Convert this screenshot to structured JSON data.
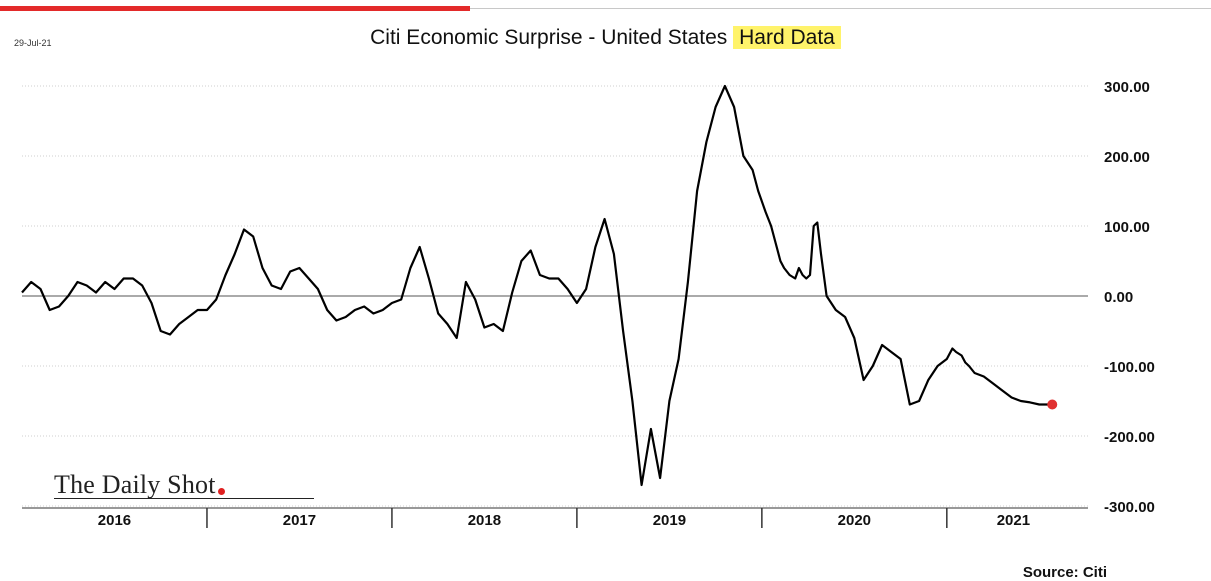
{
  "header": {
    "date": "29-Jul-21",
    "title_main": "Citi Economic Surprise - United States",
    "title_highlight": "Hard Data"
  },
  "logo": {
    "text": "The Daily Shot"
  },
  "source": "Source: Citi",
  "colors": {
    "line": "#000000",
    "last_point": "#e03030",
    "highlight": "#fff36a",
    "accent": "#e32a2a"
  },
  "chart_data": {
    "type": "line",
    "title": "Citi Economic Surprise - United States Hard Data",
    "xlabel": "",
    "ylabel": "",
    "ylim": [
      -300,
      300
    ],
    "xlim": [
      2016.0,
      2021.72
    ],
    "yticks": [
      300,
      200,
      100,
      0,
      -100,
      -200,
      -300
    ],
    "ytick_labels": [
      "300.00",
      "200.00",
      "100.00",
      "0.00",
      "-100.00",
      "-200.00",
      "-300.00"
    ],
    "x_year_labels": [
      "2016",
      "2017",
      "2018",
      "2019",
      "2020",
      "2021"
    ],
    "grid": true,
    "last_point": {
      "x": 2021.57,
      "y": -155
    },
    "series": [
      {
        "x": [
          2016.0,
          2016.05,
          2016.1,
          2016.15,
          2016.2,
          2016.25,
          2016.3,
          2016.35,
          2016.4,
          2016.45,
          2016.5,
          2016.55,
          2016.6,
          2016.65,
          2016.7,
          2016.75,
          2016.8,
          2016.85,
          2016.9,
          2016.95,
          2017.0,
          2017.05,
          2017.1,
          2017.15,
          2017.2,
          2017.25,
          2017.3,
          2017.35,
          2017.4,
          2017.45,
          2017.5,
          2017.55,
          2017.6,
          2017.65,
          2017.7,
          2017.75,
          2017.8,
          2017.85,
          2017.9,
          2017.95,
          2018.0,
          2018.05,
          2018.1,
          2018.15,
          2018.2,
          2018.25,
          2018.3,
          2018.35,
          2018.4,
          2018.45,
          2018.5,
          2018.55,
          2018.6,
          2018.65,
          2018.7,
          2018.75,
          2018.8,
          2018.85,
          2018.9,
          2018.95,
          2019.0,
          2019.05,
          2019.1,
          2019.15,
          2019.2,
          2019.25,
          2019.3,
          2019.35,
          2019.4,
          2019.45,
          2019.5,
          2019.55,
          2019.6,
          2019.65,
          2019.7,
          2019.75,
          2019.8,
          2019.85,
          2019.9,
          2019.95,
          2019.98,
          2020.02,
          2020.05,
          2020.08,
          2020.1,
          2020.12,
          2020.15,
          2020.18,
          2020.2,
          2020.22,
          2020.24,
          2020.26,
          2020.28,
          2020.3,
          2020.32,
          2020.35,
          2020.4,
          2020.45,
          2020.5,
          2020.55,
          2020.6,
          2020.65,
          2020.7,
          2020.75,
          2020.8,
          2020.85,
          2020.9,
          2020.95,
          2021.0,
          2021.03,
          2021.05,
          2021.08,
          2021.1,
          2021.12,
          2021.15,
          2021.2,
          2021.25,
          2021.3,
          2021.35,
          2021.4,
          2021.45,
          2021.5,
          2021.53,
          2021.57
        ],
        "values": [
          5,
          20,
          10,
          -20,
          -15,
          0,
          20,
          15,
          5,
          20,
          10,
          25,
          25,
          15,
          -10,
          -50,
          -55,
          -40,
          -30,
          -20,
          -20,
          -5,
          30,
          60,
          95,
          85,
          40,
          15,
          10,
          35,
          40,
          25,
          10,
          -20,
          -35,
          -30,
          -20,
          -15,
          -25,
          -20,
          -10,
          -5,
          40,
          70,
          25,
          -25,
          -40,
          -60,
          20,
          -5,
          -45,
          -40,
          -50,
          5,
          50,
          65,
          30,
          25,
          25,
          10,
          -10,
          10,
          70,
          110,
          60,
          -50,
          -150,
          -270,
          -190,
          -260,
          -150,
          -90,
          20,
          150,
          220,
          270,
          300,
          270,
          200,
          180,
          150,
          120,
          100,
          70,
          50,
          40,
          30,
          25,
          40,
          30,
          25,
          30,
          100,
          105,
          60,
          0,
          -20,
          -30,
          -60,
          -120,
          -100,
          -70,
          -80,
          -90,
          -155,
          -150,
          -120,
          -100,
          -90,
          -75,
          -80,
          -85,
          -95,
          -100,
          -110,
          -115,
          -125,
          -135,
          -145,
          -150,
          -152,
          -155,
          -155,
          -155
        ]
      }
    ]
  }
}
